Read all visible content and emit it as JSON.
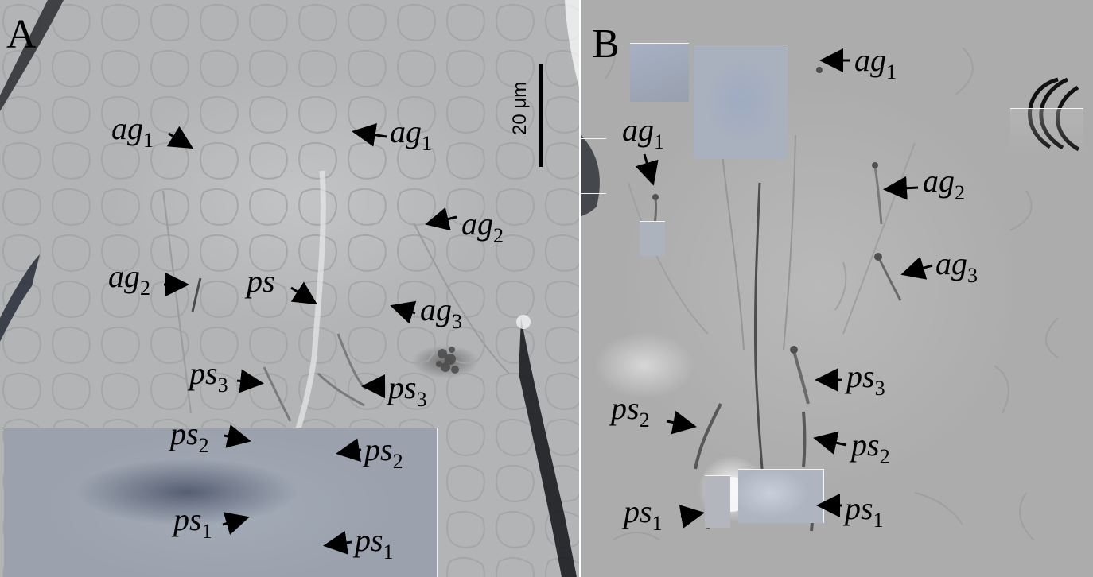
{
  "panels": {
    "a": {
      "letter": "A",
      "scale_bar_label": "20 μm",
      "labels": {
        "ag1_left": {
          "base": "ag",
          "sub": "1"
        },
        "ag1_right": {
          "base": "ag",
          "sub": "1"
        },
        "ag2_right": {
          "base": "ag",
          "sub": "2"
        },
        "ag2_left": {
          "base": "ag",
          "sub": "2"
        },
        "ps": {
          "base": "ps",
          "sub": ""
        },
        "ag3": {
          "base": "ag",
          "sub": "3"
        },
        "ps3_left": {
          "base": "ps",
          "sub": "3"
        },
        "ps3_right": {
          "base": "ps",
          "sub": "3"
        },
        "ps2_left": {
          "base": "ps",
          "sub": "2"
        },
        "ps2_right": {
          "base": "ps",
          "sub": "2"
        },
        "ps1_left": {
          "base": "ps",
          "sub": "1"
        },
        "ps1_right": {
          "base": "ps",
          "sub": "1"
        }
      }
    },
    "b": {
      "letter": "B",
      "labels": {
        "ag1_top": {
          "base": "ag",
          "sub": "1"
        },
        "ag1_left": {
          "base": "ag",
          "sub": "1"
        },
        "ag2": {
          "base": "ag",
          "sub": "2"
        },
        "ag3": {
          "base": "ag",
          "sub": "3"
        },
        "ps3": {
          "base": "ps",
          "sub": "3"
        },
        "ps2_left": {
          "base": "ps",
          "sub": "2"
        },
        "ps2_right": {
          "base": "ps",
          "sub": "2"
        },
        "ps1_left": {
          "base": "ps",
          "sub": "1"
        },
        "ps1_right": {
          "base": "ps",
          "sub": "1"
        }
      }
    }
  }
}
